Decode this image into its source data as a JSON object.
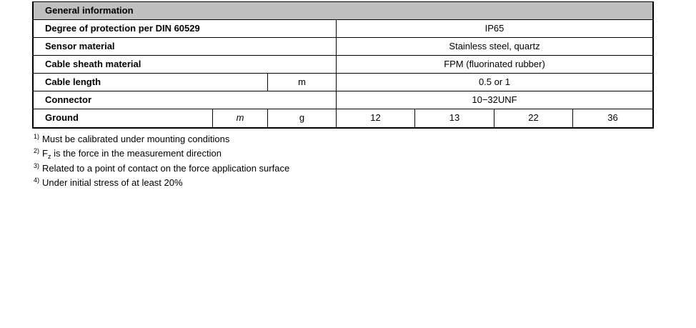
{
  "table": {
    "section_title": "General information",
    "rows": [
      {
        "label": "Degree of protection per DIN 60529",
        "value": "IP65"
      },
      {
        "label": "Sensor material",
        "value": "Stainless steel, quartz"
      },
      {
        "label": "Cable sheath material",
        "value": "FPM (fluorinated rubber)"
      },
      {
        "label": "Cable length",
        "unit": "m",
        "value": "0.5 or 1"
      },
      {
        "label": "Connector",
        "value": "10−32UNF"
      },
      {
        "label": "Ground",
        "symbol": "m",
        "unit": "g",
        "values": [
          "12",
          "13",
          "22",
          "36"
        ]
      }
    ]
  },
  "footnotes": [
    {
      "mark": "1)",
      "text": "Must be calibrated under mounting conditions"
    },
    {
      "mark": "2)",
      "symbol": "F",
      "subscript": "z",
      "text": " is the force in the measurement direction"
    },
    {
      "mark": "3)",
      "text": "Related to a point of contact on the force application surface"
    },
    {
      "mark": "4)",
      "text": "Under initial stress of at least 20%"
    }
  ],
  "colors": {
    "header_bg": "#c0c0c0",
    "border": "#000000"
  }
}
